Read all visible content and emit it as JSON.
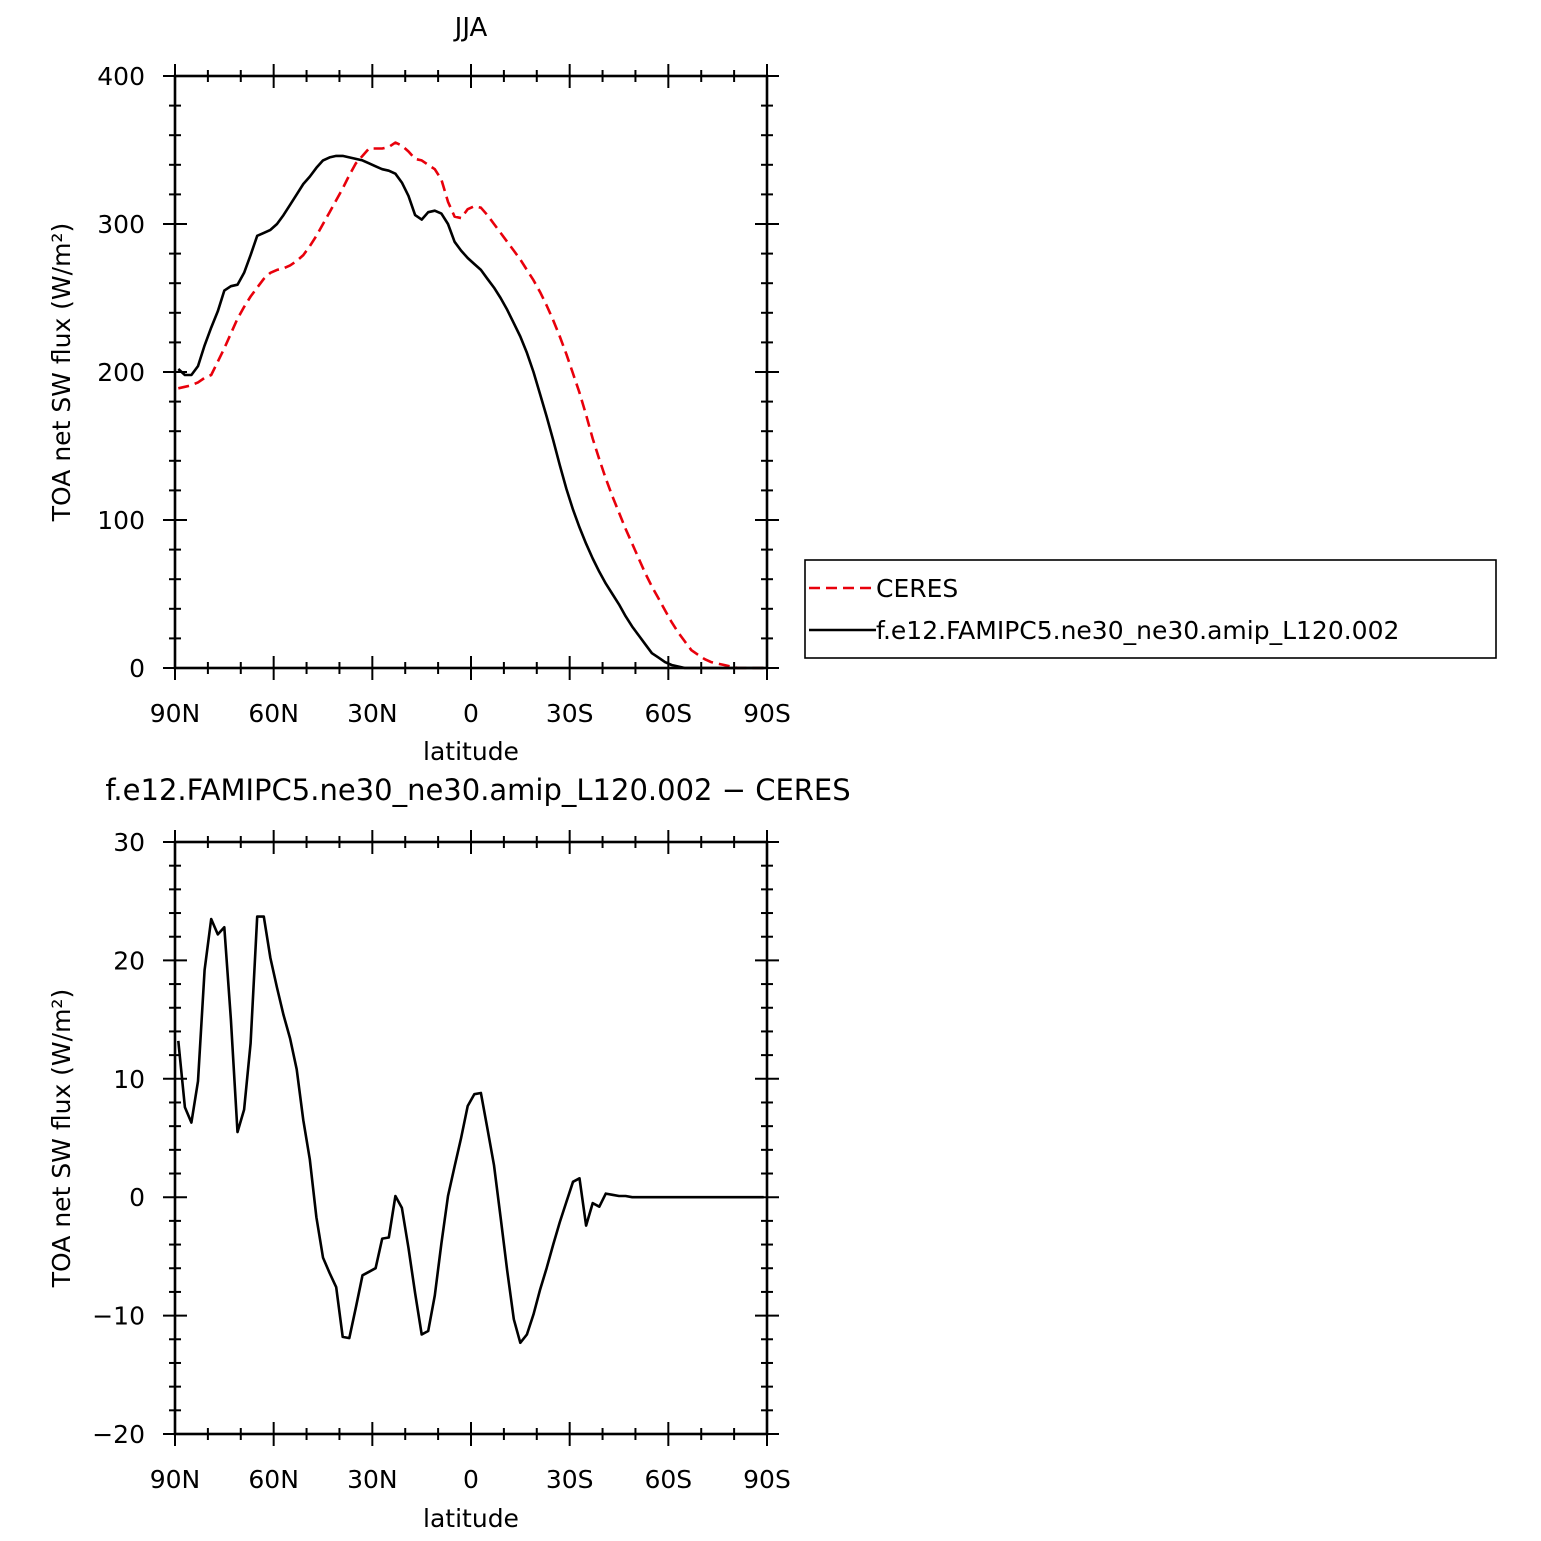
{
  "colors": {
    "ceres": "#e8000b",
    "model": "#000000",
    "axis": "#000000",
    "background": "#ffffff"
  },
  "chart_data": [
    {
      "type": "line",
      "title": "JJA",
      "xlabel": "latitude",
      "ylabel": "TOA net SW flux (W/m²)",
      "xlim": [
        90,
        -90
      ],
      "ylim": [
        0,
        400
      ],
      "xticks": [
        {
          "value": 90,
          "label": "90N"
        },
        {
          "value": 60,
          "label": "60N"
        },
        {
          "value": 30,
          "label": "30N"
        },
        {
          "value": 0,
          "label": "0"
        },
        {
          "value": -30,
          "label": "30S"
        },
        {
          "value": -60,
          "label": "60S"
        },
        {
          "value": -90,
          "label": "90S"
        }
      ],
      "yticks": [
        {
          "value": 0,
          "label": "0"
        },
        {
          "value": 100,
          "label": "100"
        },
        {
          "value": 200,
          "label": "200"
        },
        {
          "value": 300,
          "label": "300"
        },
        {
          "value": 400,
          "label": "400"
        }
      ],
      "grid": false,
      "legend_position": "right",
      "series": [
        {
          "name": "CERES",
          "style": "dashed",
          "color": "#e8000b",
          "x": [
            89,
            87,
            85,
            83,
            81,
            79,
            77,
            75,
            73,
            71,
            69,
            67,
            65,
            63,
            61,
            59,
            57,
            55,
            53,
            51,
            49,
            47,
            45,
            43,
            41,
            39,
            37,
            35,
            33,
            31,
            29,
            27,
            25,
            23,
            21,
            19,
            17,
            15,
            13,
            11,
            9,
            7,
            5,
            3,
            1,
            -1,
            -3,
            -5,
            -7,
            -9,
            -11,
            -13,
            -15,
            -17,
            -19,
            -21,
            -23,
            -25,
            -27,
            -29,
            -31,
            -33,
            -35,
            -37,
            -39,
            -41,
            -43,
            -45,
            -47,
            -49,
            -51,
            -53,
            -55,
            -57,
            -59,
            -61,
            -63,
            -65,
            -67,
            -69,
            -71,
            -73,
            -75,
            -77,
            -79,
            -81,
            -83,
            -85,
            -87,
            -89
          ],
          "y": [
            189,
            190,
            191,
            193,
            196,
            198,
            207,
            216,
            226,
            236,
            244,
            251,
            257,
            263,
            267,
            269,
            270,
            272,
            275,
            279,
            285,
            292,
            300,
            308,
            316,
            324,
            333,
            341,
            346,
            351,
            351,
            351,
            352,
            355,
            353,
            349,
            344,
            343,
            340,
            337,
            330,
            315,
            305,
            304,
            310,
            312,
            311,
            306,
            300,
            294,
            288,
            282,
            276,
            269,
            262,
            254,
            245,
            235,
            224,
            212,
            199,
            186,
            171,
            155,
            141,
            128,
            116,
            105,
            94,
            84,
            74,
            64,
            55,
            47,
            39,
            31,
            24,
            18,
            12,
            9,
            6,
            4,
            3,
            2,
            1,
            0,
            0,
            0,
            0,
            0
          ]
        },
        {
          "name": "f.e12.FAMIPC5.ne30_ne30.amip_L120.002",
          "style": "solid",
          "color": "#000000",
          "x": [
            89,
            87,
            85,
            83,
            81,
            79,
            77,
            75,
            73,
            71,
            69,
            67,
            65,
            63,
            61,
            59,
            57,
            55,
            53,
            51,
            49,
            47,
            45,
            43,
            41,
            39,
            37,
            35,
            33,
            31,
            29,
            27,
            25,
            23,
            21,
            19,
            17,
            15,
            13,
            11,
            9,
            7,
            5,
            3,
            1,
            -1,
            -3,
            -5,
            -7,
            -9,
            -11,
            -13,
            -15,
            -17,
            -19,
            -21,
            -23,
            -25,
            -27,
            -29,
            -31,
            -33,
            -35,
            -37,
            -39,
            -41,
            -43,
            -45,
            -47,
            -49,
            -51,
            -53,
            -55,
            -57,
            -59,
            -61,
            -63,
            -65,
            -67,
            -69,
            -71,
            -73,
            -75,
            -77,
            -79,
            -81,
            -83,
            -85,
            -87,
            -89
          ],
          "y": [
            202,
            198,
            198,
            204,
            218,
            230,
            241,
            255,
            258,
            259,
            267,
            279,
            292,
            294,
            296,
            300,
            306,
            313,
            320,
            327,
            332,
            338,
            343,
            345,
            346,
            346,
            345,
            344,
            343,
            341,
            339,
            337,
            336,
            334,
            328,
            319,
            306,
            303,
            308,
            309,
            307,
            300,
            288,
            282,
            277,
            273,
            269,
            263,
            257,
            250,
            242,
            233,
            224,
            213,
            200,
            185,
            170,
            154,
            137,
            121,
            107,
            95,
            84,
            74,
            65,
            57,
            50,
            43,
            35,
            28,
            22,
            16,
            10,
            7,
            4,
            2,
            1,
            0,
            0,
            0,
            0,
            0,
            0,
            0,
            0,
            0,
            0,
            0,
            0,
            0
          ]
        }
      ]
    },
    {
      "type": "line",
      "title": "f.e12.FAMIPC5.ne30_ne30.amip_L120.002 − CERES",
      "xlabel": "latitude",
      "ylabel": "TOA net SW flux (W/m²)",
      "xlim": [
        90,
        -90
      ],
      "ylim": [
        -20,
        30
      ],
      "xticks": [
        {
          "value": 90,
          "label": "90N"
        },
        {
          "value": 60,
          "label": "60N"
        },
        {
          "value": 30,
          "label": "30N"
        },
        {
          "value": 0,
          "label": "0"
        },
        {
          "value": -30,
          "label": "30S"
        },
        {
          "value": -60,
          "label": "60S"
        },
        {
          "value": -90,
          "label": "90S"
        }
      ],
      "yticks": [
        {
          "value": -20,
          "label": "−20"
        },
        {
          "value": -10,
          "label": "−10"
        },
        {
          "value": 0,
          "label": "0"
        },
        {
          "value": 10,
          "label": "10"
        },
        {
          "value": 20,
          "label": "20"
        },
        {
          "value": 30,
          "label": "30"
        }
      ],
      "grid": false,
      "series": [
        {
          "style": "solid",
          "color": "#000000",
          "x": [
            89,
            87,
            85,
            83,
            81,
            79,
            77,
            75,
            73,
            71,
            69,
            67,
            65,
            63,
            61,
            59,
            57,
            55,
            53,
            51,
            49,
            47,
            45,
            43,
            41,
            39,
            37,
            35,
            33,
            31,
            29,
            27,
            25,
            23,
            21,
            19,
            17,
            15,
            13,
            11,
            9,
            7,
            5,
            3,
            1,
            -1,
            -3,
            -5,
            -7,
            -9,
            -11,
            -13,
            -15,
            -17,
            -19,
            -21,
            -23,
            -25,
            -27,
            -29,
            -31,
            -33,
            -35,
            -37,
            -39,
            -41,
            -43,
            -45,
            -47,
            -49,
            -51,
            -53,
            -55,
            -57,
            -59,
            -61,
            -63,
            -65,
            -67,
            -69,
            -71,
            -73,
            -75,
            -77,
            -79,
            -81,
            -83,
            -85,
            -87,
            -89
          ],
          "y": [
            13.2,
            7.6,
            6.3,
            9.8,
            19.2,
            23.5,
            22.2,
            22.8,
            15.0,
            5.5,
            7.4,
            13.0,
            23.7,
            23.7,
            20.2,
            17.7,
            15.4,
            13.4,
            10.8,
            6.5,
            3.2,
            -1.7,
            -5.1,
            -6.4,
            -7.6,
            -11.8,
            -11.9,
            -9.3,
            -6.6,
            -6.3,
            -6.0,
            -3.5,
            -3.4,
            0.1,
            -0.9,
            -4.3,
            -8.1,
            -11.6,
            -11.3,
            -8.3,
            -3.9,
            0.1,
            2.6,
            5.0,
            7.7,
            8.7,
            8.8,
            5.8,
            2.7,
            -1.7,
            -6.2,
            -10.3,
            -12.3,
            -11.6,
            -9.9,
            -7.8,
            -6.0,
            -4.0,
            -2.1,
            -0.4,
            1.3,
            1.6,
            -2.4,
            -0.5,
            -0.8,
            0.3,
            0.2,
            0.1,
            0.1,
            0.0,
            0.0,
            0.0,
            0.0,
            0.0,
            0.0,
            0.0,
            0.0,
            0.0,
            0.0,
            0.0,
            0.0,
            0.0,
            0.0,
            0.0,
            0.0,
            0.0,
            0.0,
            0.0,
            0.0,
            0.0
          ]
        }
      ]
    }
  ]
}
